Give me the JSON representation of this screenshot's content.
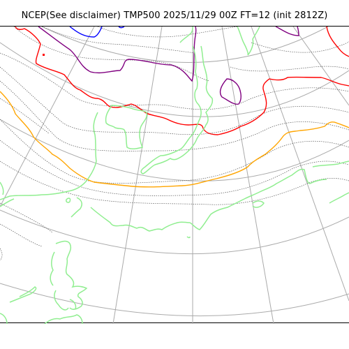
{
  "title": "NCEP(See disclaimer) TMP500 2025/11/29 00Z FT=12 (init 2812Z)",
  "colors": {
    "graticule": "#aaaaaa",
    "isotherm_minor": "#555555",
    "coastline": "#90ee90",
    "isotherm_red": "#ff0000",
    "isotherm_orange": "#ffa500",
    "isotherm_purple": "#800080",
    "isotherm_blue": "#0000ff"
  }
}
